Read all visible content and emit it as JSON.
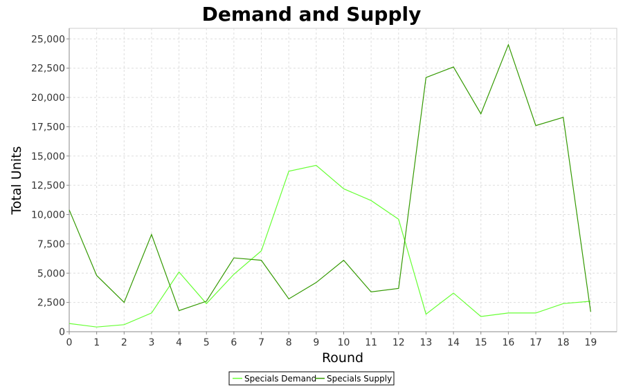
{
  "chart_data": {
    "type": "line",
    "title": "Demand and Supply",
    "xlabel": "Round",
    "ylabel": "Total Units",
    "x": [
      0,
      1,
      2,
      3,
      4,
      5,
      6,
      7,
      8,
      9,
      10,
      11,
      12,
      13,
      14,
      15,
      16,
      17,
      18,
      19
    ],
    "xlim": [
      0,
      19.95
    ],
    "ylim": [
      0,
      25900
    ],
    "yticks": [
      0,
      2500,
      5000,
      7500,
      10000,
      12500,
      15000,
      17500,
      20000,
      22500,
      25000
    ],
    "ytick_labels": [
      "0",
      "2,500",
      "5,000",
      "7,500",
      "10,000",
      "12,500",
      "15,000",
      "17,500",
      "20,000",
      "22,500",
      "25,000"
    ],
    "grid": true,
    "legend_position": "bottom-center",
    "series": [
      {
        "name": "Specials Demand",
        "color": "#66ff33",
        "values": [
          700,
          400,
          600,
          1600,
          5100,
          2400,
          4900,
          6900,
          13700,
          14200,
          12200,
          11200,
          9600,
          1500,
          3300,
          1300,
          1600,
          1600,
          2400,
          2600
        ]
      },
      {
        "name": "Specials Supply",
        "color": "#339900",
        "values": [
          10400,
          4800,
          2500,
          8300,
          1800,
          2600,
          6300,
          6100,
          2800,
          4200,
          6100,
          3400,
          3700,
          21700,
          22600,
          18600,
          24500,
          17600,
          18300,
          1700
        ]
      }
    ]
  }
}
